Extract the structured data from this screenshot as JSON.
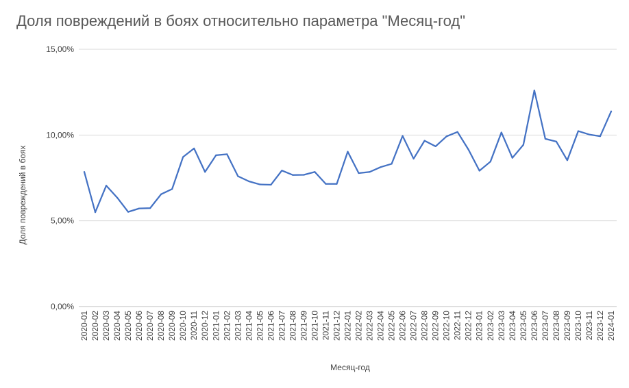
{
  "chart_data": {
    "type": "line",
    "title": "Доля повреждений в боях относительно параметра \"Месяц-год\"",
    "xlabel": "Месяц-год",
    "ylabel": "Доля повреждений в боях",
    "ylim": [
      0,
      15
    ],
    "y_ticks": [
      0,
      5,
      10,
      15
    ],
    "y_tick_labels": [
      "0,00%",
      "5,00%",
      "10,00%",
      "15,00%"
    ],
    "grid": true,
    "legend": "none",
    "line_color": "#4472c4",
    "categories": [
      "2020-01",
      "2020-02",
      "2020-03",
      "2020-04",
      "2020-05",
      "2020-06",
      "2020-07",
      "2020-08",
      "2020-09",
      "2020-10",
      "2020-11",
      "2020-12",
      "2021-01",
      "2021-02",
      "2021-03",
      "2021-04",
      "2021-05",
      "2021-06",
      "2021-07",
      "2021-08",
      "2021-09",
      "2021-10",
      "2021-11",
      "2021-12",
      "2022-01",
      "2022-02",
      "2022-03",
      "2022-04",
      "2022-05",
      "2022-06",
      "2022-07",
      "2022-08",
      "2022-09",
      "2022-10",
      "2022-11",
      "2022-12",
      "2023-01",
      "2023-02",
      "2023-03",
      "2023-04",
      "2023-05",
      "2023-06",
      "2023-07",
      "2023-08",
      "2023-09",
      "2023-10",
      "2023-11",
      "2023-12",
      "2024-01"
    ],
    "values": [
      7.85,
      5.5,
      7.05,
      6.35,
      5.52,
      5.72,
      5.74,
      6.55,
      6.85,
      8.72,
      9.22,
      7.85,
      8.82,
      8.88,
      7.6,
      7.3,
      7.12,
      7.1,
      7.93,
      7.67,
      7.68,
      7.85,
      7.15,
      7.15,
      9.03,
      7.78,
      7.85,
      8.13,
      8.32,
      9.95,
      8.62,
      9.67,
      9.34,
      9.92,
      10.18,
      9.15,
      7.92,
      8.45,
      10.15,
      8.67,
      9.43,
      12.6,
      9.78,
      9.62,
      8.53,
      10.23,
      10.03,
      9.93,
      11.38
    ]
  }
}
